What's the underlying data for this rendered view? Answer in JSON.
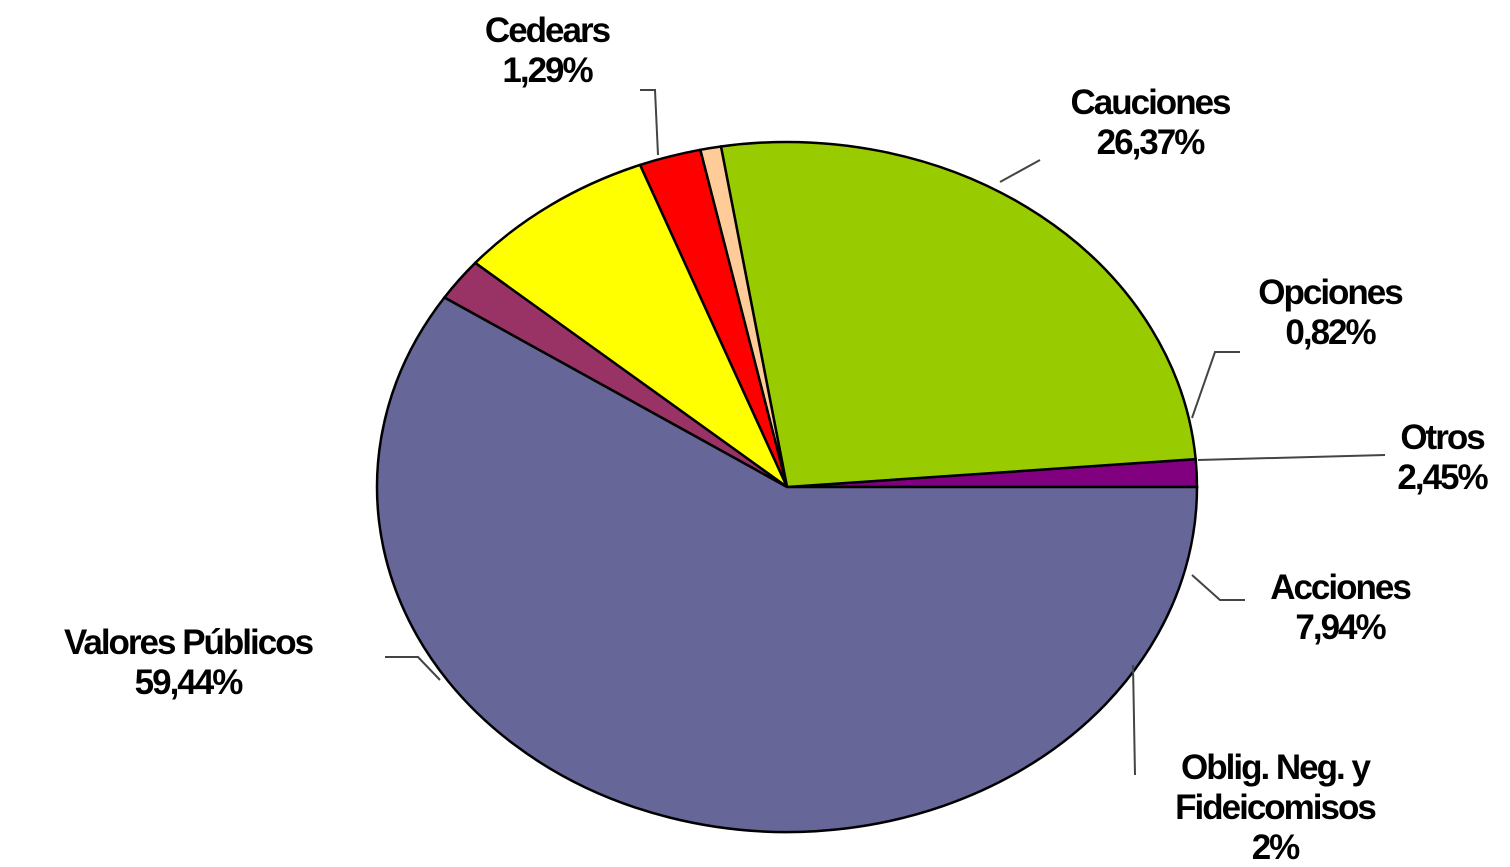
{
  "chart_data": {
    "type": "pie",
    "title": "",
    "legend": "none",
    "slices": [
      {
        "label": "Cedears",
        "label_lines": [
          "Cedears"
        ],
        "value": 1.29,
        "value_label": "1,29%",
        "color": "#800080"
      },
      {
        "label": "Cauciones",
        "label_lines": [
          "Cauciones"
        ],
        "value": 26.37,
        "value_label": "26,37%",
        "color": "#99CC00"
      },
      {
        "label": "Opciones",
        "label_lines": [
          "Opciones"
        ],
        "value": 0.82,
        "value_label": "0,82%",
        "color": "#FFCC99"
      },
      {
        "label": "Otros",
        "label_lines": [
          "Otros"
        ],
        "value": 2.45,
        "value_label": "2,45%",
        "color": "#FF0000"
      },
      {
        "label": "Acciones",
        "label_lines": [
          "Acciones"
        ],
        "value": 7.94,
        "value_label": "7,94%",
        "color": "#FFFF00"
      },
      {
        "label": "Oblig. Neg. y Fideicomisos",
        "label_lines": [
          "Oblig. Neg. y",
          "Fideicomisos"
        ],
        "value": 2,
        "value_label": "2%",
        "color": "#993366"
      },
      {
        "label": "Valores Públicos",
        "label_lines": [
          "Valores Públicos"
        ],
        "value": 59.44,
        "value_label": "59,44%",
        "color": "#666699"
      }
    ]
  }
}
